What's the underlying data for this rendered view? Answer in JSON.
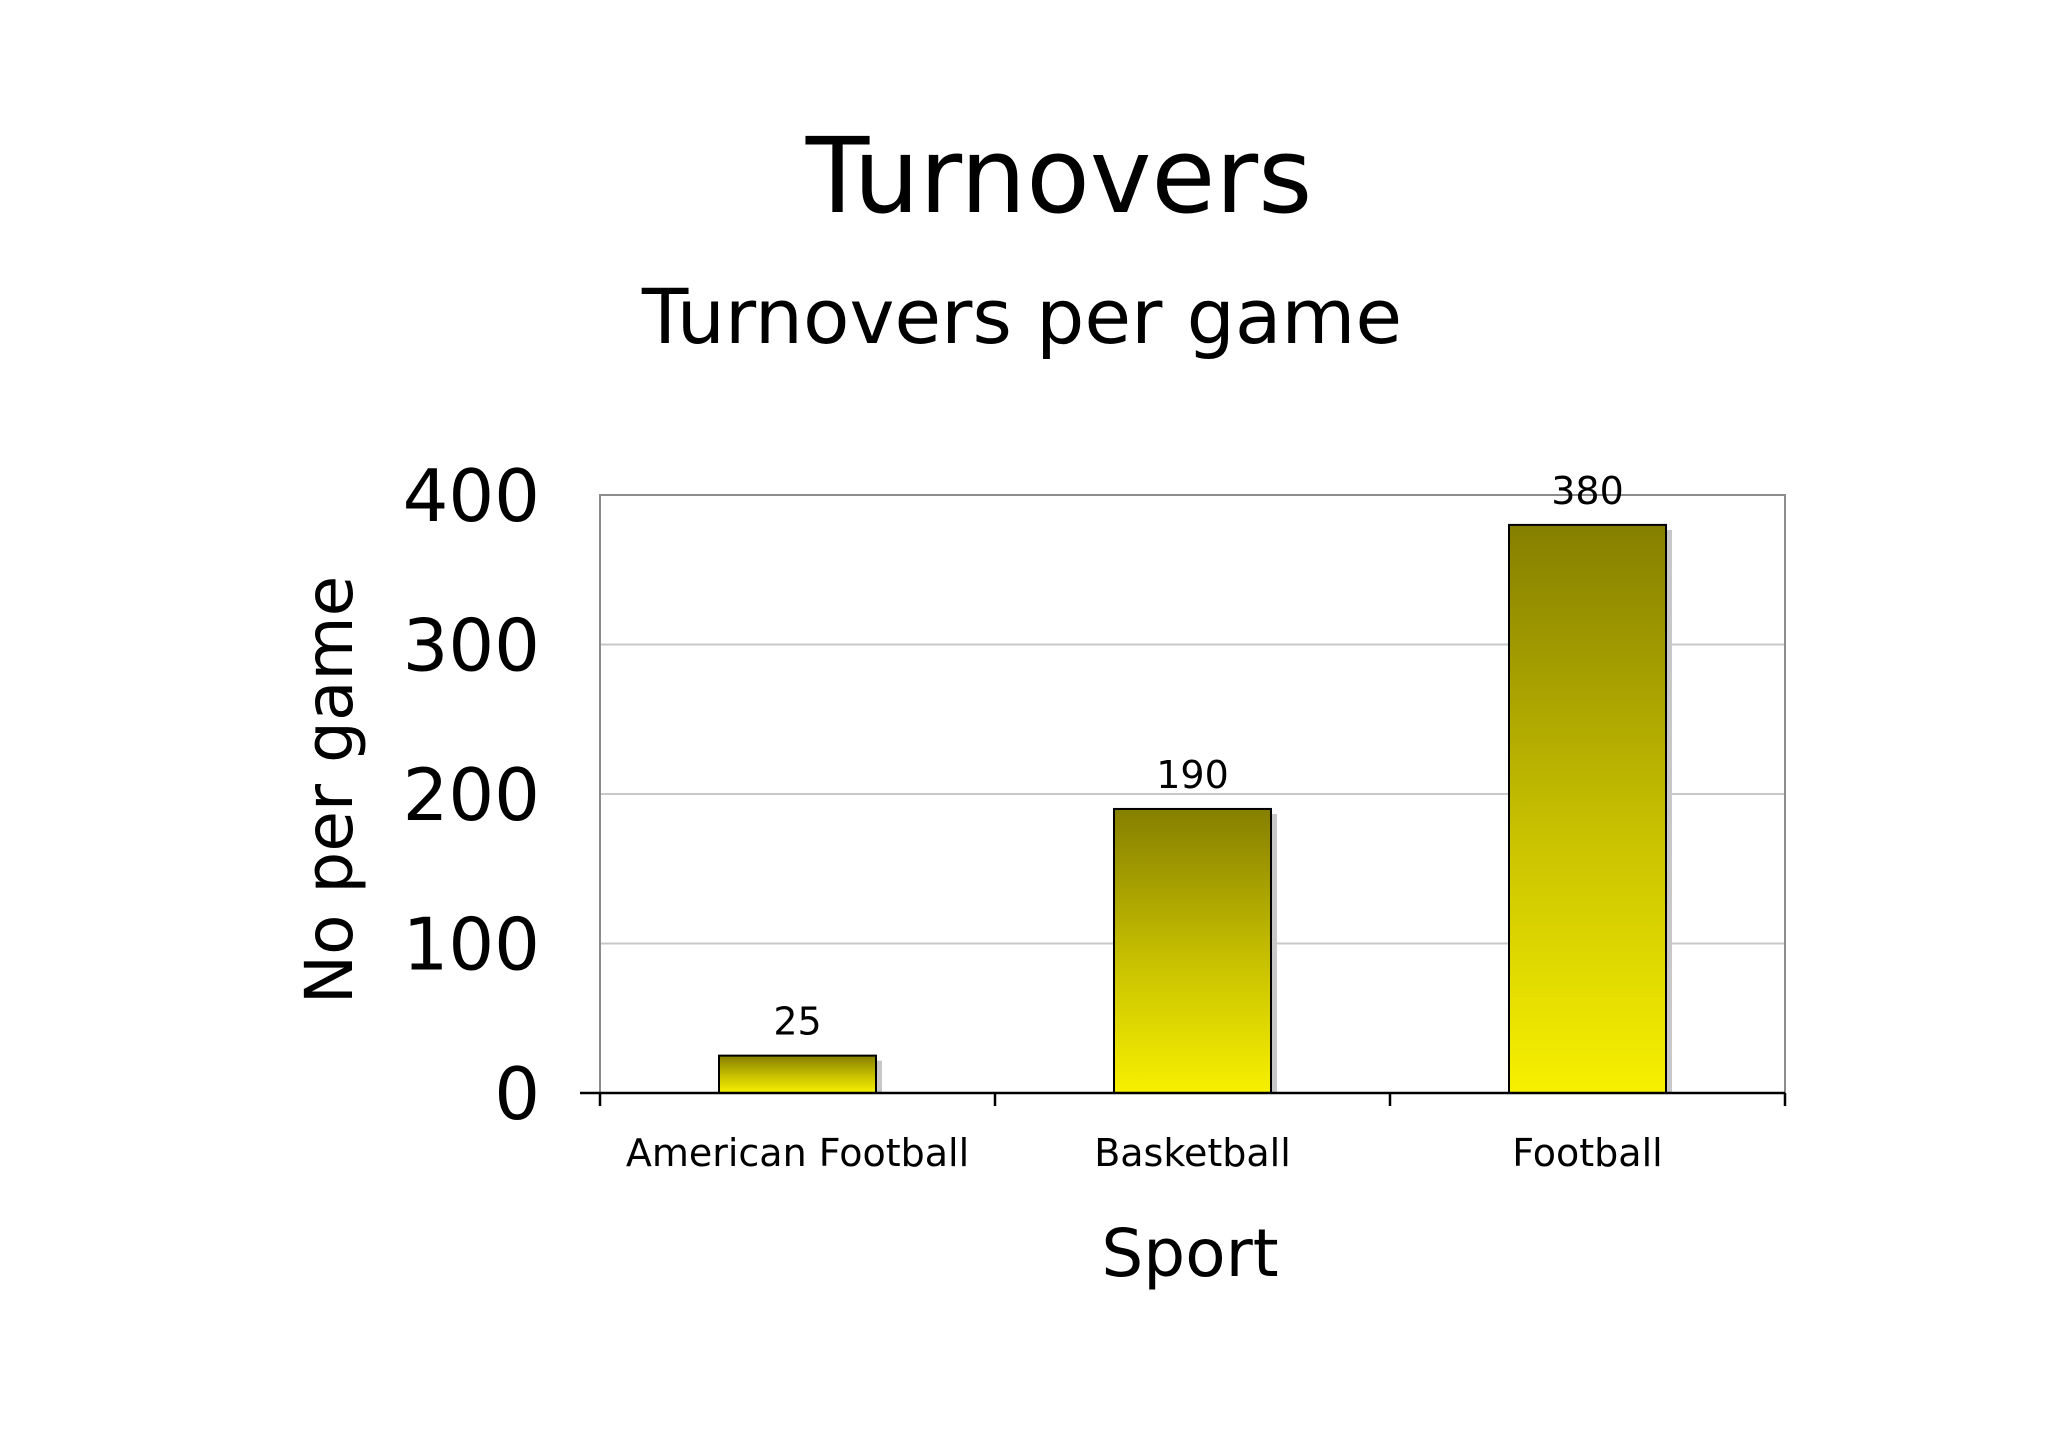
{
  "slide": {
    "title": "Turnovers"
  },
  "chart_data": {
    "type": "bar",
    "title": "Turnovers per game",
    "xlabel": "Sport",
    "ylabel": "No per game",
    "categories": [
      "American Football",
      "Basketball",
      "Football"
    ],
    "values": [
      25,
      190,
      380
    ],
    "data_labels": [
      "25",
      "190",
      "380"
    ],
    "ylim": [
      0,
      400
    ],
    "yticks": [
      0,
      100,
      200,
      300,
      400
    ],
    "ytick_labels": [
      "0",
      "100",
      "200",
      "300",
      "400"
    ],
    "grid": true,
    "legend": "none",
    "colors": {
      "bar_top": "#857f00",
      "bar_mid": "#c9c200",
      "bar_bottom": "#f7f000",
      "bar_outline": "#000000",
      "bar_shadow": "#c8c8c8",
      "gridline": "#c8c8c8",
      "plot_border": "#8c8c8c",
      "axis": "#000000"
    }
  }
}
